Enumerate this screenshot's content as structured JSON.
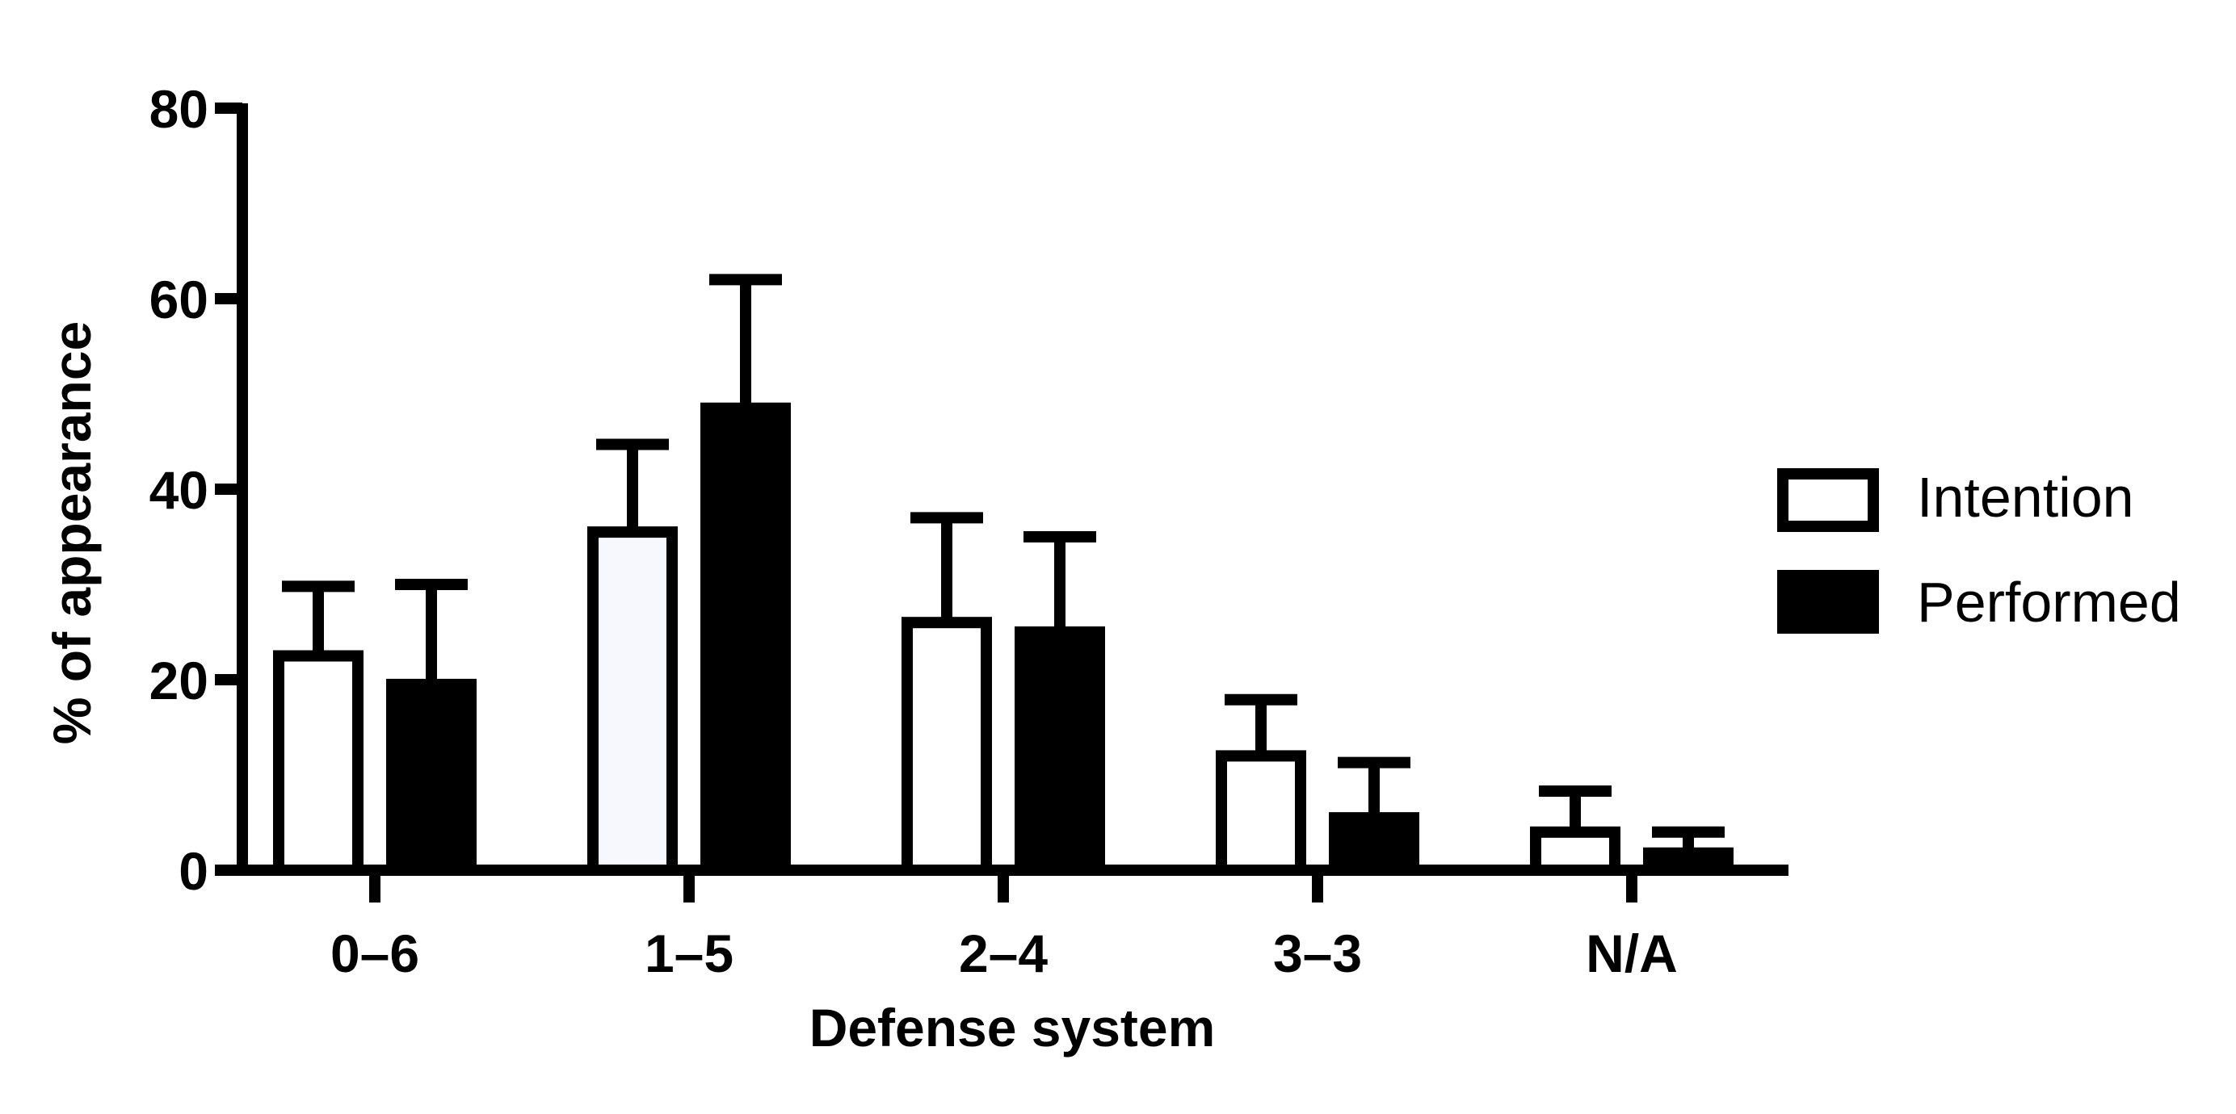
{
  "chart_data": {
    "type": "bar",
    "title": "",
    "xlabel": "Defense system",
    "ylabel": "% of appearance",
    "ylim": [
      0,
      80
    ],
    "yticks": [
      0,
      20,
      40,
      60,
      80
    ],
    "categories": [
      "0–6",
      "1–5",
      "2–4",
      "3–3",
      "N/A"
    ],
    "series": [
      {
        "name": "Intention",
        "fill": "#ffffff",
        "values": [
          22.5,
          35.5,
          26,
          12,
          4
        ],
        "error": [
          7.3,
          9.2,
          11,
          5.9,
          4.3
        ]
      },
      {
        "name": "Performed",
        "fill": "#000000",
        "values": [
          19.5,
          48.5,
          25,
          5.5,
          1.8
        ],
        "error": [
          10.5,
          13.5,
          10,
          5.8,
          2.2
        ]
      }
    ],
    "bar_highlight_fill": "#f6f8fd",
    "highlight_category": "1–5",
    "grid": false,
    "legend": "right"
  }
}
